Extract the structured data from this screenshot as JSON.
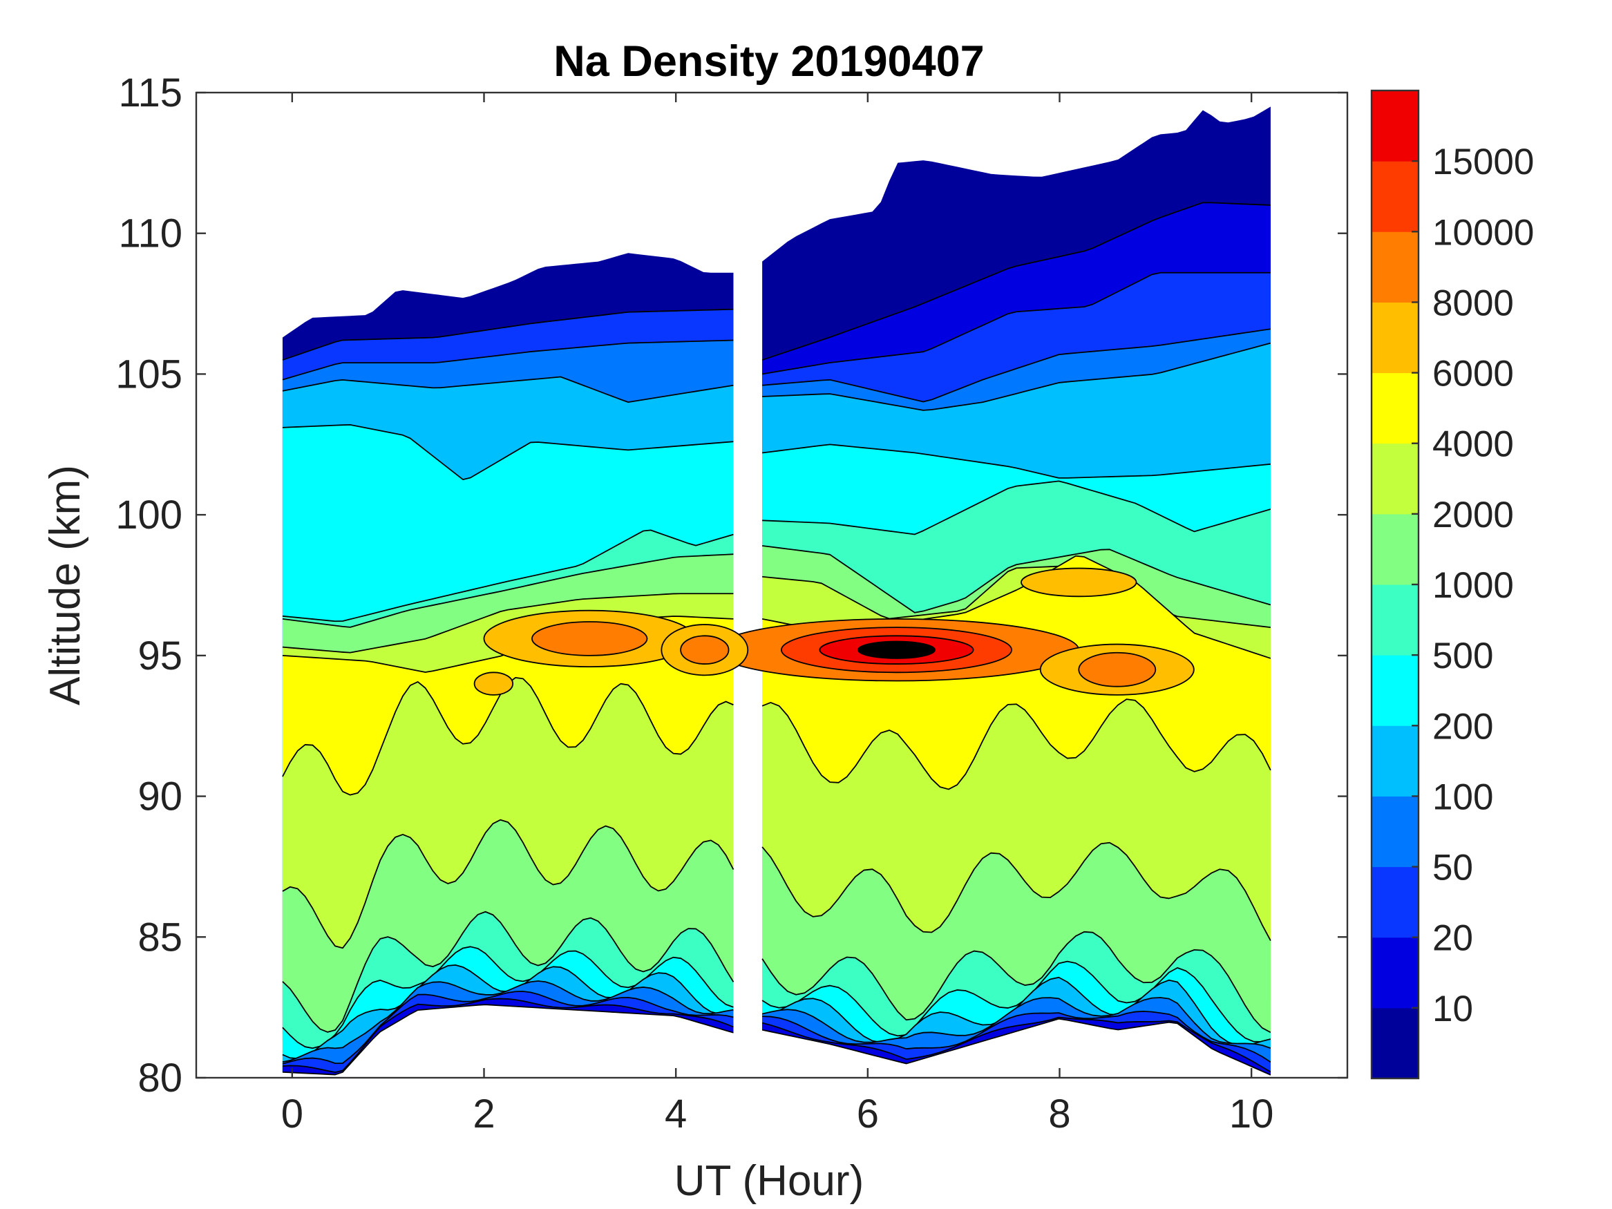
{
  "chart_data": {
    "type": "contour",
    "title": "Na Density 20190407",
    "xlabel": "UT (Hour)",
    "ylabel": "Altitude (km)",
    "xlim": [
      -1,
      11
    ],
    "ylim": [
      80,
      115
    ],
    "x_ticks": [
      0,
      2,
      4,
      6,
      8,
      10
    ],
    "y_ticks": [
      80,
      85,
      90,
      95,
      100,
      105,
      110,
      115
    ],
    "x_tick_labels": [
      "0",
      "2",
      "4",
      "6",
      "8",
      "10"
    ],
    "y_tick_labels": [
      "80",
      "85",
      "90",
      "95",
      "100",
      "105",
      "110",
      "115"
    ],
    "colorbar": {
      "levels": [
        10,
        20,
        50,
        100,
        200,
        500,
        1000,
        2000,
        4000,
        6000,
        8000,
        10000,
        15000
      ],
      "labels": [
        "10",
        "20",
        "50",
        "100",
        "200",
        "500",
        "1000",
        "2000",
        "4000",
        "6000",
        "8000",
        "10000",
        "15000"
      ],
      "colors": [
        "#00009b",
        "#0000e0",
        "#0a37ff",
        "#0078ff",
        "#00bfff",
        "#00ffff",
        "#3cffc3",
        "#82ff82",
        "#c3ff3c",
        "#ffff00",
        "#ffbe00",
        "#ff7d00",
        "#ff3c00",
        "#f00000"
      ]
    },
    "segments": [
      {
        "x_start": -0.1,
        "x_end": 4.6,
        "top_altitude": [
          [
            -0.1,
            106.3
          ],
          [
            0.2,
            107
          ],
          [
            0.8,
            107.1
          ],
          [
            1.1,
            108
          ],
          [
            1.8,
            107.7
          ],
          [
            2.3,
            108.3
          ],
          [
            2.6,
            108.8
          ],
          [
            3.2,
            109
          ],
          [
            3.5,
            109.3
          ],
          [
            4.0,
            109.1
          ],
          [
            4.3,
            108.6
          ],
          [
            4.6,
            108.6
          ]
        ],
        "bottom_altitude": [
          [
            -0.1,
            80.2
          ],
          [
            0.5,
            80.1
          ],
          [
            0.9,
            81.6
          ],
          [
            1.3,
            82.4
          ],
          [
            2.0,
            82.6
          ],
          [
            3.0,
            82.4
          ],
          [
            4.0,
            82.2
          ],
          [
            4.6,
            81.6
          ]
        ],
        "layer_boundaries": [
          {
            "min_density": 20,
            "points": [
              [
                -0.1,
                105.5
              ],
              [
                0.5,
                106.2
              ],
              [
                1.5,
                106.3
              ],
              [
                2.5,
                106.8
              ],
              [
                3.5,
                107.2
              ],
              [
                4.6,
                107.3
              ]
            ]
          },
          {
            "min_density": 50,
            "points": [
              [
                -0.1,
                104.8
              ],
              [
                0.5,
                105.4
              ],
              [
                1.5,
                105.4
              ],
              [
                2.5,
                105.8
              ],
              [
                3.5,
                106.1
              ],
              [
                4.6,
                106.2
              ]
            ]
          },
          {
            "min_density": 100,
            "points": [
              [
                -0.1,
                104.4
              ],
              [
                0.5,
                104.8
              ],
              [
                1.5,
                104.5
              ],
              [
                2.8,
                104.9
              ],
              [
                3.5,
                104.0
              ],
              [
                4.6,
                104.6
              ]
            ]
          },
          {
            "min_density": 200,
            "points": [
              [
                -0.1,
                103.1
              ],
              [
                0.6,
                103.2
              ],
              [
                1.2,
                102.8
              ],
              [
                1.8,
                101.2
              ],
              [
                2.5,
                102.6
              ],
              [
                3.5,
                102.3
              ],
              [
                4.6,
                102.6
              ]
            ]
          },
          {
            "min_density": 500,
            "points": [
              [
                -0.1,
                96.4
              ],
              [
                0.5,
                96.2
              ],
              [
                1.2,
                96.8
              ],
              [
                2.2,
                97.6
              ],
              [
                3.0,
                98.2
              ],
              [
                3.7,
                99.5
              ],
              [
                4.2,
                98.9
              ],
              [
                4.6,
                99.3
              ]
            ]
          },
          {
            "min_density": 1000,
            "points": [
              [
                -0.1,
                96.3
              ],
              [
                0.6,
                96.0
              ],
              [
                1.2,
                96.6
              ],
              [
                2.2,
                97.3
              ],
              [
                3.0,
                97.9
              ],
              [
                4.0,
                98.5
              ],
              [
                4.6,
                98.6
              ]
            ]
          },
          {
            "min_density": 2000,
            "points": [
              [
                -0.1,
                95.3
              ],
              [
                0.6,
                95.1
              ],
              [
                1.4,
                95.6
              ],
              [
                2.2,
                96.6
              ],
              [
                3.0,
                97.0
              ],
              [
                4.0,
                97.2
              ],
              [
                4.6,
                97.2
              ]
            ]
          },
          {
            "min_density": 4000,
            "points": [
              [
                -0.1,
                95.0
              ],
              [
                0.8,
                94.8
              ],
              [
                1.4,
                94.4
              ],
              [
                2.2,
                95.0
              ],
              [
                3.0,
                96.2
              ],
              [
                4.0,
                96.4
              ],
              [
                4.6,
                96.3
              ]
            ]
          }
        ]
      },
      {
        "x_start": 4.9,
        "x_end": 10.2,
        "top_altitude": [
          [
            4.9,
            109
          ],
          [
            5.2,
            109.8
          ],
          [
            5.6,
            110.5
          ],
          [
            6.1,
            110.8
          ],
          [
            6.3,
            112.5
          ],
          [
            6.6,
            112.6
          ],
          [
            7.3,
            112.1
          ],
          [
            7.8,
            112.0
          ],
          [
            8.6,
            112.6
          ],
          [
            9.0,
            113.5
          ],
          [
            9.3,
            113.6
          ],
          [
            9.5,
            114.4
          ],
          [
            9.7,
            113.9
          ],
          [
            10.0,
            114.1
          ],
          [
            10.2,
            114.5
          ]
        ],
        "bottom_altitude": [
          [
            4.9,
            81.7
          ],
          [
            5.6,
            81.2
          ],
          [
            6.4,
            80.5
          ],
          [
            7.2,
            81.3
          ],
          [
            8.0,
            82.1
          ],
          [
            8.6,
            81.7
          ],
          [
            9.2,
            82.0
          ],
          [
            9.6,
            81.0
          ],
          [
            10.2,
            80.1
          ]
        ],
        "layer_boundaries": [
          {
            "min_density": 10,
            "points": [
              [
                4.9,
                105.5
              ],
              [
                5.6,
                106.3
              ],
              [
                6.5,
                107.4
              ],
              [
                7.5,
                108.8
              ],
              [
                8.3,
                109.4
              ],
              [
                9.0,
                110.5
              ],
              [
                9.5,
                111.1
              ],
              [
                10.2,
                111.0
              ]
            ]
          },
          {
            "min_density": 20,
            "points": [
              [
                4.9,
                105.0
              ],
              [
                5.6,
                105.4
              ],
              [
                6.6,
                105.8
              ],
              [
                7.5,
                107.2
              ],
              [
                8.3,
                107.4
              ],
              [
                9.0,
                108.6
              ],
              [
                10.2,
                108.6
              ]
            ]
          },
          {
            "min_density": 50,
            "points": [
              [
                4.9,
                104.6
              ],
              [
                5.6,
                104.8
              ],
              [
                6.6,
                104.0
              ],
              [
                7.2,
                104.8
              ],
              [
                8.0,
                105.7
              ],
              [
                9.0,
                106.0
              ],
              [
                10.2,
                106.6
              ]
            ]
          },
          {
            "min_density": 100,
            "points": [
              [
                4.9,
                104.2
              ],
              [
                5.6,
                104.3
              ],
              [
                6.6,
                103.7
              ],
              [
                7.2,
                104.0
              ],
              [
                8.0,
                104.7
              ],
              [
                9.0,
                105.0
              ],
              [
                10.2,
                106.1
              ]
            ]
          },
          {
            "min_density": 200,
            "points": [
              [
                4.9,
                102.2
              ],
              [
                5.6,
                102.5
              ],
              [
                6.5,
                102.2
              ],
              [
                7.5,
                101.7
              ],
              [
                8.0,
                101.3
              ],
              [
                9.0,
                101.4
              ],
              [
                10.2,
                101.8
              ]
            ]
          },
          {
            "min_density": 500,
            "points": [
              [
                4.9,
                99.8
              ],
              [
                5.6,
                99.7
              ],
              [
                6.5,
                99.3
              ],
              [
                7.5,
                101.0
              ],
              [
                8.0,
                101.2
              ],
              [
                8.8,
                100.4
              ],
              [
                9.4,
                99.4
              ],
              [
                10.2,
                100.2
              ]
            ]
          },
          {
            "min_density": 1000,
            "points": [
              [
                4.9,
                98.9
              ],
              [
                5.6,
                98.6
              ],
              [
                6.5,
                96.5
              ],
              [
                7.0,
                97.0
              ],
              [
                7.5,
                98.2
              ],
              [
                8.5,
                98.8
              ],
              [
                9.2,
                97.8
              ],
              [
                10.2,
                96.8
              ]
            ]
          },
          {
            "min_density": 2000,
            "points": [
              [
                4.9,
                97.8
              ],
              [
                5.5,
                97.6
              ],
              [
                6.2,
                96.3
              ],
              [
                7.0,
                96.6
              ],
              [
                7.5,
                98.1
              ],
              [
                8.2,
                98.2
              ],
              [
                9.2,
                96.4
              ],
              [
                10.2,
                96.0
              ]
            ]
          },
          {
            "min_density": 4000,
            "points": [
              [
                4.9,
                96.3
              ],
              [
                5.5,
                95.9
              ],
              [
                6.2,
                96.1
              ],
              [
                7.0,
                96.5
              ],
              [
                7.6,
                97.4
              ],
              [
                8.2,
                98.6
              ],
              [
                8.8,
                97.6
              ],
              [
                9.4,
                95.8
              ],
              [
                10.2,
                94.9
              ]
            ]
          }
        ]
      }
    ],
    "annotations": [
      {
        "region": "peak",
        "x": 6.3,
        "y": 95.2,
        "density": ">15000"
      },
      {
        "region": "peak",
        "x": 3.0,
        "y": 95.4,
        "density": "6000-10000"
      },
      {
        "region": "peak",
        "x": 8.6,
        "y": 94.5,
        "density": "8000-10000"
      }
    ]
  }
}
